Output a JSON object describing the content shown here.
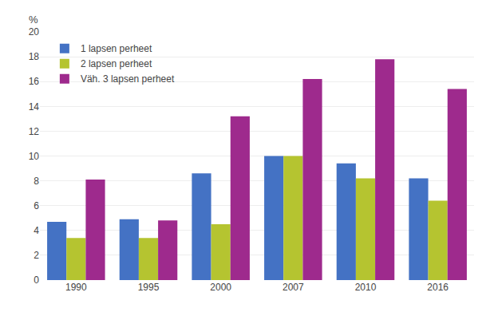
{
  "chart_data": {
    "type": "bar",
    "categories": [
      "1990",
      "1995",
      "2000",
      "2007",
      "2010",
      "2016"
    ],
    "series": [
      {
        "name": "1 lapsen perheet",
        "color": "#4472c4",
        "values": [
          4.7,
          4.9,
          8.6,
          10.0,
          9.4,
          8.2
        ]
      },
      {
        "name": "2 lapsen perheet",
        "color": "#b5c430",
        "values": [
          3.4,
          3.4,
          4.5,
          10.0,
          8.2,
          6.4
        ]
      },
      {
        "name": "Väh. 3 lapsen perheet",
        "color": "#9e2a8d",
        "values": [
          8.1,
          4.8,
          13.2,
          16.2,
          17.8,
          15.4
        ]
      }
    ],
    "ylabel": "%",
    "ylim": [
      0,
      20
    ],
    "yticks": [
      0,
      2,
      4,
      6,
      8,
      10,
      12,
      14,
      16,
      18,
      20
    ],
    "grid": true,
    "legend": "upper left"
  }
}
